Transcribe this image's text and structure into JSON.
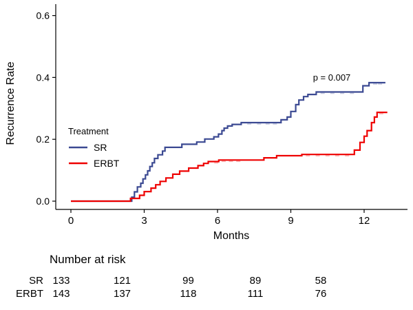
{
  "chart_data": {
    "type": "line",
    "subtype": "step-cumulative-incidence",
    "xlabel": "Months",
    "ylabel": "Recurrence Rate",
    "xlim": [
      0,
      13.8
    ],
    "ylim": [
      0,
      0.62
    ],
    "xticks": [
      0,
      3,
      6,
      9,
      12
    ],
    "ytick_labels": [
      "0.0",
      "0.2",
      "0.4",
      "0.6"
    ],
    "annotation": "p = 0.007",
    "grid": "off",
    "legend": {
      "title": "Treatment",
      "position": "inside-left-middle"
    },
    "series": [
      {
        "name": "SR",
        "color": "#3B4992",
        "steps": [
          [
            0,
            0
          ],
          [
            2.49,
            0.013
          ],
          [
            2.6,
            0.03
          ],
          [
            2.72,
            0.046
          ],
          [
            2.86,
            0.058
          ],
          [
            2.95,
            0.072
          ],
          [
            3.05,
            0.085
          ],
          [
            3.14,
            0.098
          ],
          [
            3.23,
            0.112
          ],
          [
            3.33,
            0.124
          ],
          [
            3.42,
            0.138
          ],
          [
            3.56,
            0.15
          ],
          [
            3.75,
            0.162
          ],
          [
            3.85,
            0.174
          ],
          [
            4.54,
            0.184
          ],
          [
            5.15,
            0.191
          ],
          [
            5.48,
            0.201
          ],
          [
            5.85,
            0.208
          ],
          [
            6.04,
            0.217
          ],
          [
            6.18,
            0.228
          ],
          [
            6.27,
            0.236
          ],
          [
            6.41,
            0.243
          ],
          [
            6.6,
            0.248
          ],
          [
            6.97,
            0.254
          ],
          [
            8.6,
            0.263
          ],
          [
            8.85,
            0.272
          ],
          [
            9.0,
            0.29
          ],
          [
            9.2,
            0.312
          ],
          [
            9.33,
            0.327
          ],
          [
            9.52,
            0.338
          ],
          [
            9.7,
            0.345
          ],
          [
            10.04,
            0.353
          ],
          [
            11.95,
            0.373
          ],
          [
            12.2,
            0.383
          ],
          [
            12.87,
            0.383
          ]
        ],
        "censor_times": [
          7.3,
          7.7,
          8.05,
          8.35,
          10.3,
          10.7,
          11.1,
          11.5,
          12.45,
          12.65
        ]
      },
      {
        "name": "ERBT",
        "color": "#EE0000",
        "steps": [
          [
            0,
            0
          ],
          [
            2.44,
            0.009
          ],
          [
            2.81,
            0.019
          ],
          [
            3.0,
            0.031
          ],
          [
            3.28,
            0.042
          ],
          [
            3.47,
            0.053
          ],
          [
            3.65,
            0.064
          ],
          [
            3.89,
            0.075
          ],
          [
            4.17,
            0.087
          ],
          [
            4.45,
            0.097
          ],
          [
            4.82,
            0.107
          ],
          [
            5.2,
            0.115
          ],
          [
            5.43,
            0.122
          ],
          [
            5.62,
            0.128
          ],
          [
            6.05,
            0.133
          ],
          [
            7.9,
            0.14
          ],
          [
            8.42,
            0.147
          ],
          [
            9.45,
            0.151
          ],
          [
            11.6,
            0.165
          ],
          [
            11.83,
            0.19
          ],
          [
            12.0,
            0.21
          ],
          [
            12.12,
            0.228
          ],
          [
            12.3,
            0.254
          ],
          [
            12.42,
            0.272
          ],
          [
            12.53,
            0.287
          ],
          [
            12.95,
            0.287
          ]
        ],
        "censor_times": [
          5.95,
          6.25,
          6.55,
          6.85,
          9.7,
          10.1,
          10.5,
          10.9,
          11.3,
          12.7
        ]
      }
    ],
    "risk_table": {
      "title": "Number at risk",
      "times": [
        0,
        3,
        6,
        9,
        12
      ],
      "rows": [
        {
          "name": "SR",
          "counts": [
            133,
            121,
            99,
            89,
            58
          ]
        },
        {
          "name": "ERBT",
          "counts": [
            143,
            137,
            118,
            111,
            76
          ]
        }
      ]
    }
  }
}
